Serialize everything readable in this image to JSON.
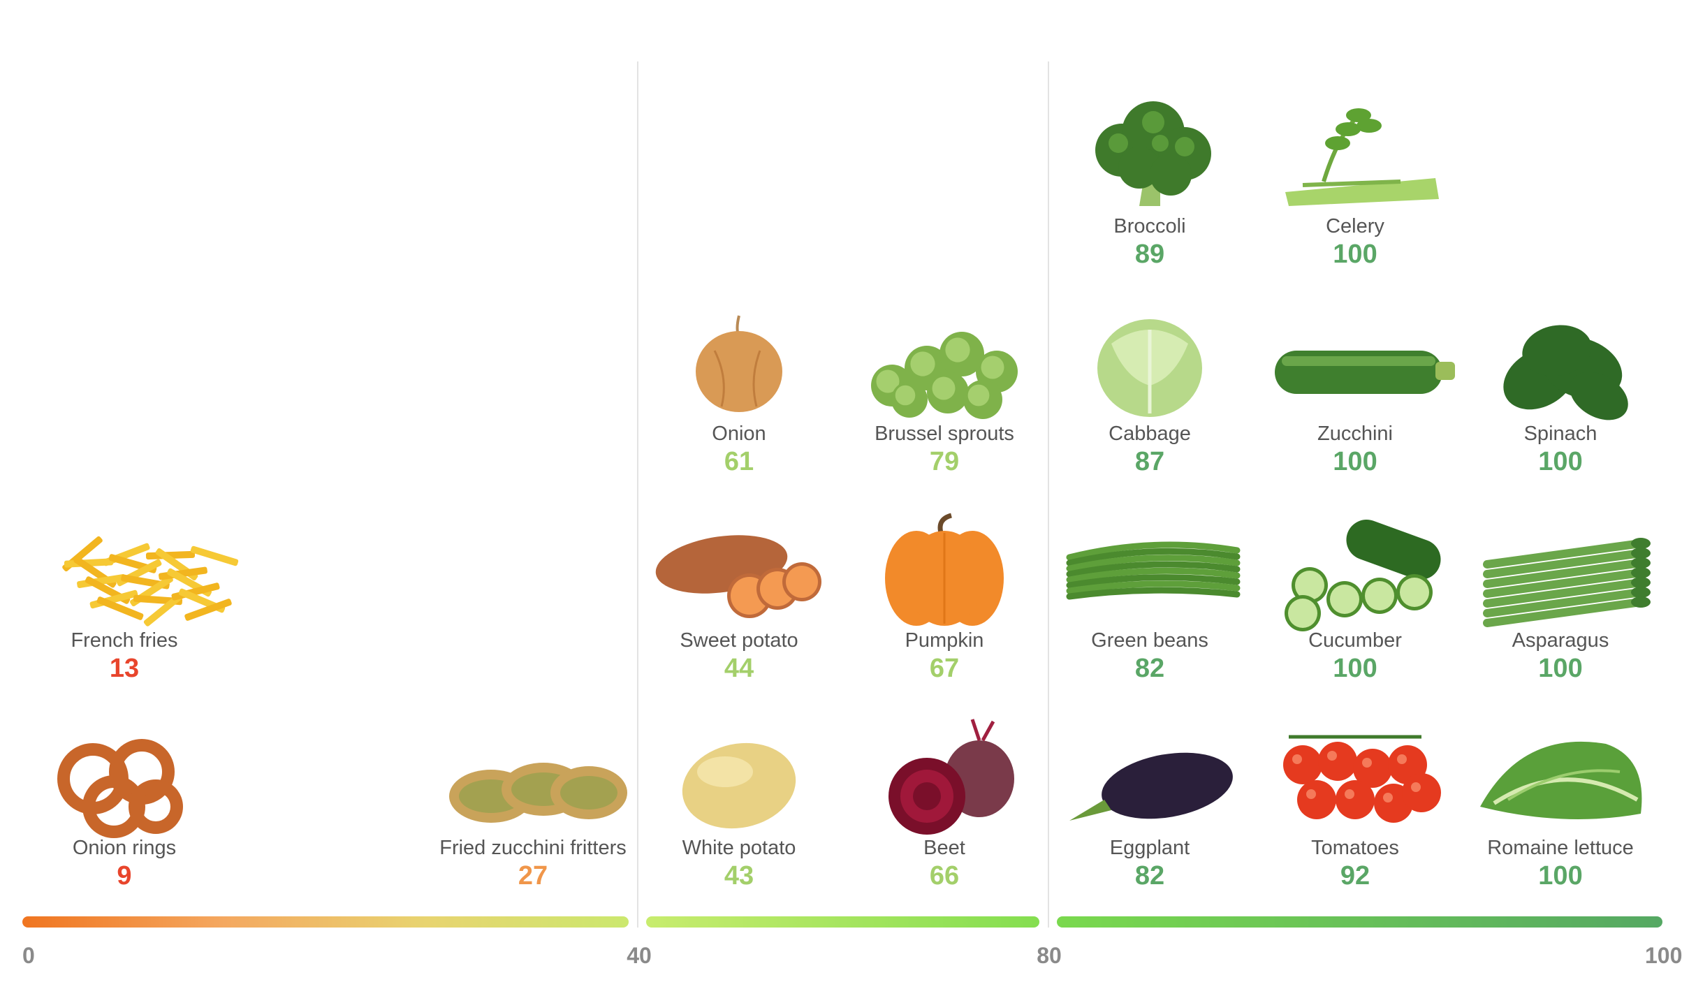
{
  "chart_data": {
    "type": "scatter",
    "title": "",
    "xlabel": "",
    "ylabel": "",
    "xlim": [
      0,
      100
    ],
    "x_ticks": [
      "0",
      "40",
      "80",
      "100"
    ],
    "bands": [
      {
        "from": 0,
        "to": 40,
        "colors": [
          "#f07520",
          "#f4a860",
          "#e8d470",
          "#cbe86e"
        ]
      },
      {
        "from": 40,
        "to": 80,
        "colors": [
          "#c8ec6e",
          "#84de50"
        ]
      },
      {
        "from": 80,
        "to": 100,
        "colors": [
          "#7ad94e",
          "#55a863"
        ]
      }
    ],
    "score_colors": {
      "low": "#e8452c",
      "mid_low": "#f0964a",
      "mid": "#a3cf6a",
      "high": "#5aa666"
    },
    "items": [
      {
        "name": "Broccoli",
        "score": 89,
        "icon": "broccoli-icon",
        "group": "80-100",
        "column": 0,
        "row": 0
      },
      {
        "name": "Celery",
        "score": 100,
        "icon": "celery-icon",
        "group": "80-100",
        "column": 1,
        "row": 0
      },
      {
        "name": "Onion",
        "score": 61,
        "icon": "onion-icon",
        "group": "40-80",
        "column": 0,
        "row": 1
      },
      {
        "name": "Brussel sprouts",
        "score": 79,
        "icon": "brussel-sprouts-icon",
        "group": "40-80",
        "column": 1,
        "row": 1
      },
      {
        "name": "Cabbage",
        "score": 87,
        "icon": "cabbage-icon",
        "group": "80-100",
        "column": 0,
        "row": 1
      },
      {
        "name": "Zucchini",
        "score": 100,
        "icon": "zucchini-icon",
        "group": "80-100",
        "column": 1,
        "row": 1
      },
      {
        "name": "Spinach",
        "score": 100,
        "icon": "spinach-icon",
        "group": "80-100",
        "column": 2,
        "row": 1
      },
      {
        "name": "French fries",
        "score": 13,
        "icon": "french-fries-icon",
        "group": "0-40",
        "column": 0,
        "row": 2
      },
      {
        "name": "Sweet potato",
        "score": 44,
        "icon": "sweet-potato-icon",
        "group": "40-80",
        "column": 0,
        "row": 2
      },
      {
        "name": "Pumpkin",
        "score": 67,
        "icon": "pumpkin-icon",
        "group": "40-80",
        "column": 1,
        "row": 2
      },
      {
        "name": "Green beans",
        "score": 82,
        "icon": "green-beans-icon",
        "group": "80-100",
        "column": 0,
        "row": 2
      },
      {
        "name": "Cucumber",
        "score": 100,
        "icon": "cucumber-icon",
        "group": "80-100",
        "column": 1,
        "row": 2
      },
      {
        "name": "Asparagus",
        "score": 100,
        "icon": "asparagus-icon",
        "group": "80-100",
        "column": 2,
        "row": 2
      },
      {
        "name": "Onion rings",
        "score": 9,
        "icon": "onion-rings-icon",
        "group": "0-40",
        "column": 0,
        "row": 3
      },
      {
        "name": "Fried zucchini fritters",
        "score": 27,
        "icon": "zucchini-fritters-icon",
        "group": "0-40",
        "column": 2,
        "row": 3
      },
      {
        "name": "White potato",
        "score": 43,
        "icon": "white-potato-icon",
        "group": "40-80",
        "column": 0,
        "row": 3
      },
      {
        "name": "Beet",
        "score": 66,
        "icon": "beet-icon",
        "group": "40-80",
        "column": 1,
        "row": 3
      },
      {
        "name": "Eggplant",
        "score": 82,
        "icon": "eggplant-icon",
        "group": "80-100",
        "column": 0,
        "row": 3
      },
      {
        "name": "Tomatoes",
        "score": 92,
        "icon": "tomatoes-icon",
        "group": "80-100",
        "column": 1,
        "row": 3
      },
      {
        "name": "Romaine lettuce",
        "score": 100,
        "icon": "romaine-lettuce-icon",
        "group": "80-100",
        "column": 2,
        "row": 3
      }
    ]
  }
}
